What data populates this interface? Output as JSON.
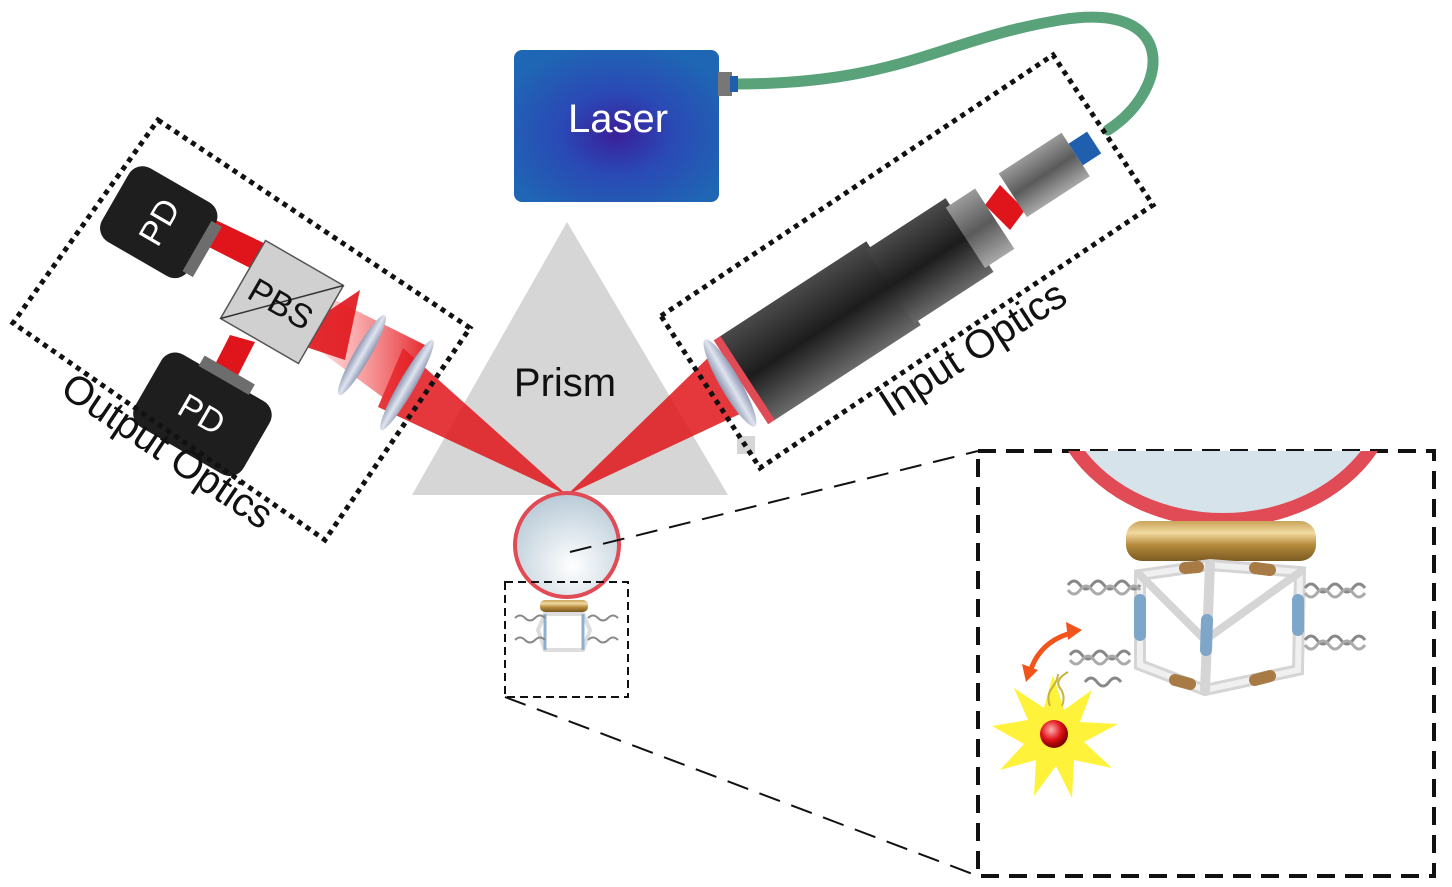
{
  "labels": {
    "laser": "Laser",
    "prism": "Prism",
    "pbs": "PBS",
    "pd_top": "PD",
    "pd_bottom": "PD",
    "output_optics": "Output Optics",
    "input_optics": "Input Optics"
  },
  "colors": {
    "beam": "#e0151b",
    "fiber": "#5aa37a",
    "laser_box": "#1f5fae",
    "prism": "#d6d6d6",
    "microsphere_rim": "#e04b55",
    "detector": "#1e1e1e"
  },
  "icons": {
    "emitter": "starburst-icon",
    "motion": "double-arrow-icon"
  }
}
